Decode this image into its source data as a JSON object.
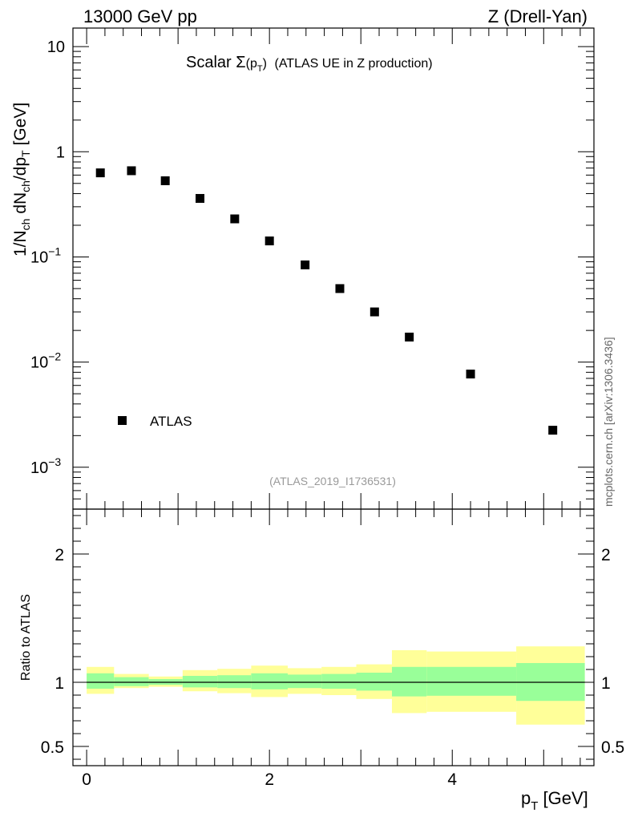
{
  "header": {
    "left": "13000 GeV pp",
    "right": "Z (Drell-Yan)"
  },
  "title_parts": {
    "prefix": "Scalar ",
    "sigma": "Σ",
    "open": "(p",
    "sub": "T",
    "close": ")",
    "suffix": "(ATLAS UE in Z production)"
  },
  "watermark": "(ATLAS_2019_I1736531)",
  "side_label": "mcplots.cern.ch [arXiv:1306.3436]",
  "legend": {
    "atlas": "ATLAS"
  },
  "axes": {
    "ylabel_main": "1/N_ch dN_ch/dp_T [GeV]",
    "ylabel_ratio": "Ratio to ATLAS",
    "xlabel": "p_T [GeV]"
  },
  "colors": {
    "inner_band": "#99ff99",
    "outer_band": "#ffff99",
    "marker": "#000000"
  },
  "chart_data": [
    {
      "type": "scatter",
      "yscale": "log",
      "ylim": [
        0.0004,
        15
      ],
      "xlim": [
        -0.15,
        5.55
      ],
      "yticks": [
        {
          "v": 10,
          "label": "10"
        },
        {
          "v": 1,
          "label": "1"
        },
        {
          "v": 0.1,
          "label": "10",
          "exp": "−1"
        },
        {
          "v": 0.01,
          "label": "10",
          "exp": "−2"
        },
        {
          "v": 0.001,
          "label": "10",
          "exp": "−3"
        }
      ],
      "series": [
        {
          "name": "ATLAS",
          "x": [
            0.15,
            0.49,
            0.86,
            1.24,
            1.62,
            2.0,
            2.39,
            2.77,
            3.15,
            3.53,
            4.2,
            5.1
          ],
          "y": [
            0.63,
            0.66,
            0.53,
            0.36,
            0.23,
            0.142,
            0.084,
            0.05,
            0.03,
            0.0173,
            0.0077,
            0.00225
          ]
        }
      ]
    },
    {
      "type": "area",
      "ylim": [
        0.35,
        2.35
      ],
      "xlim": [
        -0.15,
        5.55
      ],
      "xticks": [
        {
          "v": 0,
          "label": "0"
        },
        {
          "v": 2,
          "label": "2"
        },
        {
          "v": 4,
          "label": "4"
        }
      ],
      "yticks": [
        {
          "v": 2,
          "label": "2"
        },
        {
          "v": 1,
          "label": "1"
        },
        {
          "v": 0.5,
          "label": "0.5"
        }
      ],
      "reference_line": 1,
      "bands": {
        "edges": [
          0.0,
          0.3,
          0.68,
          1.05,
          1.43,
          1.8,
          2.2,
          2.57,
          2.95,
          3.34,
          3.72,
          4.7,
          5.45
        ],
        "inner_lo": [
          0.95,
          0.97,
          0.98,
          0.96,
          0.955,
          0.945,
          0.955,
          0.95,
          0.935,
          0.89,
          0.895,
          0.855
        ],
        "inner_hi": [
          1.07,
          1.04,
          1.025,
          1.05,
          1.055,
          1.07,
          1.06,
          1.065,
          1.075,
          1.12,
          1.12,
          1.15
        ],
        "outer_lo": [
          0.91,
          0.955,
          0.965,
          0.93,
          0.915,
          0.885,
          0.91,
          0.9,
          0.87,
          0.76,
          0.77,
          0.67
        ],
        "outer_hi": [
          1.12,
          1.065,
          1.045,
          1.095,
          1.105,
          1.13,
          1.11,
          1.12,
          1.14,
          1.25,
          1.24,
          1.28
        ]
      }
    }
  ]
}
